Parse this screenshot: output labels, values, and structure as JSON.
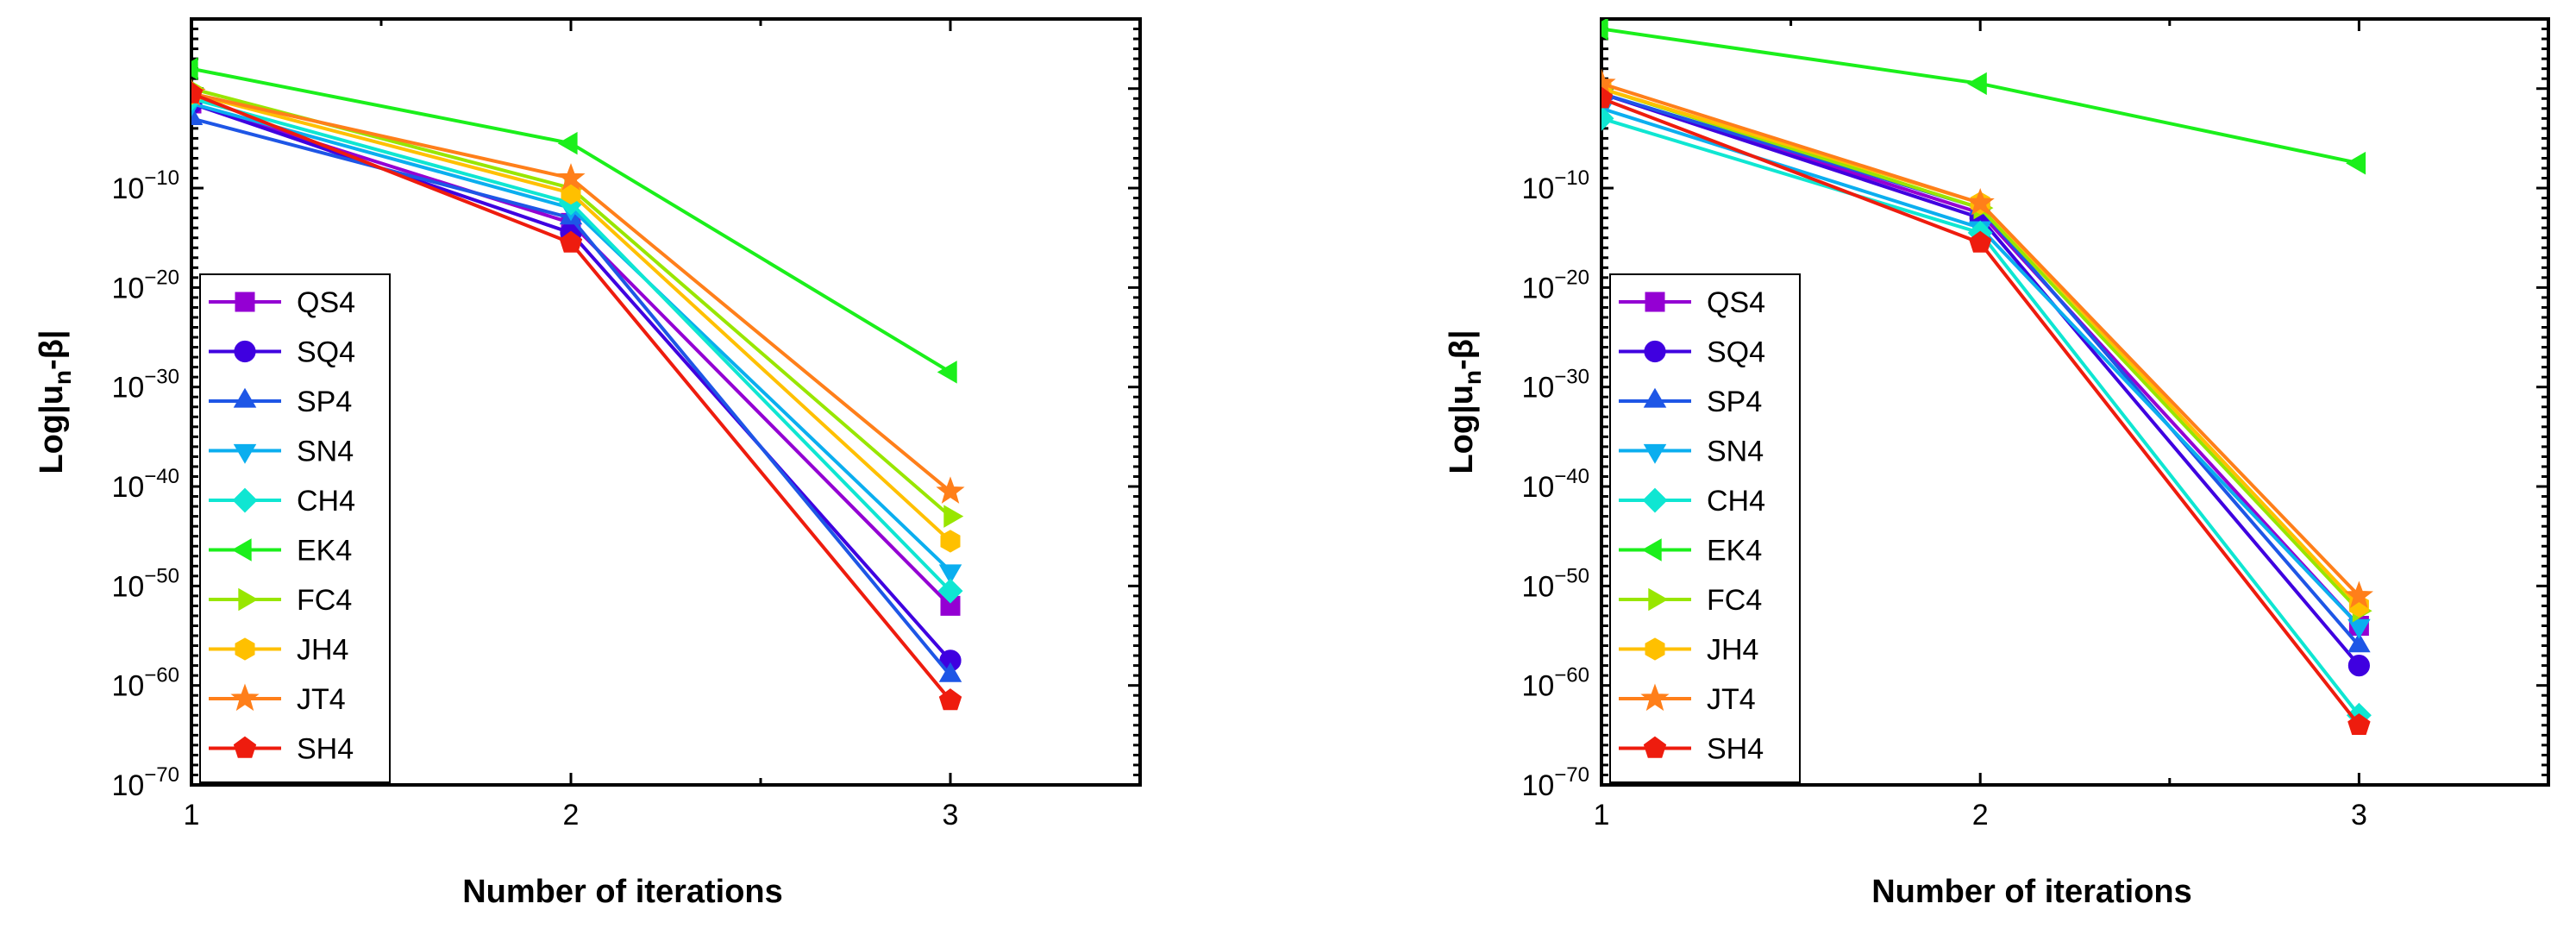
{
  "chart_data": [
    {
      "type": "line",
      "title": "",
      "xlabel": "Number of iterations",
      "ylabel": "Log|u_n-β|",
      "ylabel_parts": {
        "main": "Log|u",
        "sub": "n",
        "rest": "-β|"
      },
      "x": [
        1,
        2,
        3
      ],
      "xlim": [
        1,
        3.5
      ],
      "ylim_exp": [
        -70,
        7
      ],
      "log_scale_y": true,
      "x_ticks": [
        1,
        2,
        3
      ],
      "y_ticks_exp": [
        -70,
        -60,
        -50,
        -40,
        -30,
        -20,
        -10
      ],
      "legend_position": "lower-left",
      "series": [
        {
          "name": "QS4",
          "color": "#9400D3",
          "marker": "square",
          "values_exp": [
            -1.5,
            -13.5,
            -52
          ]
        },
        {
          "name": "SQ4",
          "color": "#3F00E0",
          "marker": "circle",
          "values_exp": [
            -1.5,
            -14.5,
            -57.5
          ]
        },
        {
          "name": "SP4",
          "color": "#1E56E6",
          "marker": "triangle-up",
          "values_exp": [
            -3.0,
            -13.0,
            -59
          ]
        },
        {
          "name": "SN4",
          "color": "#0BAEEF",
          "marker": "triangle-down",
          "values_exp": [
            -1.5,
            -12.0,
            -48.5
          ]
        },
        {
          "name": "CH4",
          "color": "#0FE6D2",
          "marker": "diamond",
          "values_exp": [
            -1.0,
            -11.5,
            -50.5
          ]
        },
        {
          "name": "EK4",
          "color": "#1BEF1B",
          "marker": "triangle-left",
          "values_exp": [
            2.0,
            -5.5,
            -28.5
          ]
        },
        {
          "name": "FC4",
          "color": "#98E600",
          "marker": "triangle-right",
          "values_exp": [
            0.0,
            -10.0,
            -43
          ]
        },
        {
          "name": "JH4",
          "color": "#FFC000",
          "marker": "hexagon",
          "values_exp": [
            -0.5,
            -10.5,
            -45.5
          ]
        },
        {
          "name": "JT4",
          "color": "#FF7F1A",
          "marker": "star",
          "values_exp": [
            -0.5,
            -9.0,
            -40.5
          ]
        },
        {
          "name": "SH4",
          "color": "#EE1C0E",
          "marker": "pentagon",
          "values_exp": [
            -0.5,
            -15.5,
            -61.5
          ]
        }
      ]
    },
    {
      "type": "line",
      "title": "",
      "xlabel": "Number of iterations",
      "ylabel": "Log|u_n-β|",
      "ylabel_parts": {
        "main": "Log|u",
        "sub": "n",
        "rest": "-β|"
      },
      "x": [
        1,
        2,
        3
      ],
      "xlim": [
        1,
        3.5
      ],
      "ylim_exp": [
        -70,
        7
      ],
      "log_scale_y": true,
      "x_ticks": [
        1,
        2,
        3
      ],
      "y_ticks_exp": [
        -70,
        -60,
        -50,
        -40,
        -30,
        -20,
        -10
      ],
      "legend_position": "lower-left",
      "series": [
        {
          "name": "QS4",
          "color": "#9400D3",
          "marker": "square",
          "values_exp": [
            -0.5,
            -12.5,
            -54
          ]
        },
        {
          "name": "SQ4",
          "color": "#3F00E0",
          "marker": "circle",
          "values_exp": [
            -0.5,
            -13.0,
            -58
          ]
        },
        {
          "name": "SP4",
          "color": "#1E56E6",
          "marker": "triangle-up",
          "values_exp": [
            -0.5,
            -12.0,
            -56
          ]
        },
        {
          "name": "SN4",
          "color": "#0BAEEF",
          "marker": "triangle-down",
          "values_exp": [
            -2.0,
            -14.0,
            -54
          ]
        },
        {
          "name": "CH4",
          "color": "#0FE6D2",
          "marker": "diamond",
          "values_exp": [
            -3.0,
            -14.5,
            -63
          ]
        },
        {
          "name": "EK4",
          "color": "#1BEF1B",
          "marker": "triangle-left",
          "values_exp": [
            6.0,
            0.5,
            -7.5
          ]
        },
        {
          "name": "FC4",
          "color": "#98E600",
          "marker": "triangle-right",
          "values_exp": [
            0.0,
            -12.0,
            -52.5
          ]
        },
        {
          "name": "JH4",
          "color": "#FFC000",
          "marker": "hexagon",
          "values_exp": [
            0.0,
            -11.5,
            -52
          ]
        },
        {
          "name": "JT4",
          "color": "#FF7F1A",
          "marker": "star",
          "values_exp": [
            0.5,
            -11.5,
            -51
          ]
        },
        {
          "name": "SH4",
          "color": "#EE1C0E",
          "marker": "pentagon",
          "values_exp": [
            -1.0,
            -15.5,
            -64
          ]
        }
      ]
    }
  ]
}
